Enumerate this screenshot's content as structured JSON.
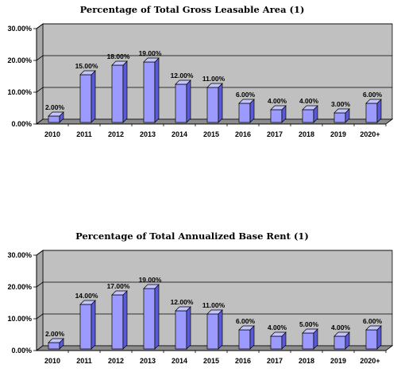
{
  "chart_data": [
    {
      "type": "bar",
      "title": "Percentage of Total Gross Leasable Area (1)",
      "categories": [
        "2010",
        "2011",
        "2012",
        "2013",
        "2014",
        "2015",
        "2016",
        "2017",
        "2018",
        "2019",
        "2020+"
      ],
      "values": [
        2,
        15,
        18,
        19,
        12,
        11,
        6,
        4,
        4,
        3,
        6
      ],
      "data_labels": [
        "2.00%",
        "15.00%",
        "18.00%",
        "19.00%",
        "12.00%",
        "11.00%",
        "6.00%",
        "4.00%",
        "4.00%",
        "3.00%",
        "6.00%"
      ],
      "ylim": [
        0,
        30
      ],
      "yticks": [
        0,
        10,
        20,
        30
      ],
      "ytick_labels": [
        "0.00%",
        "10.00%",
        "20.00%",
        "30.00%"
      ],
      "grid": true,
      "colors": {
        "bar": "#9a9aff",
        "bar_side": "#5a5ad6",
        "bar_top": "#c4c4ff",
        "plot_back": "#c0c0c0",
        "plot_floor": "#8c8c8c"
      }
    },
    {
      "type": "bar",
      "title": "Percentage of Total Annualized Base Rent (1)",
      "categories": [
        "2010",
        "2011",
        "2012",
        "2013",
        "2014",
        "2015",
        "2016",
        "2017",
        "2018",
        "2019",
        "2020+"
      ],
      "values": [
        2,
        14,
        17,
        19,
        12,
        11,
        6,
        4,
        5,
        4,
        6
      ],
      "data_labels": [
        "2.00%",
        "14.00%",
        "17.00%",
        "19.00%",
        "12.00%",
        "11.00%",
        "6.00%",
        "4.00%",
        "5.00%",
        "4.00%",
        "6.00%"
      ],
      "ylim": [
        0,
        30
      ],
      "yticks": [
        0,
        10,
        20,
        30
      ],
      "ytick_labels": [
        "0.00%",
        "10.00%",
        "20.00%",
        "30.00%"
      ],
      "grid": true,
      "colors": {
        "bar": "#9a9aff",
        "bar_side": "#5a5ad6",
        "bar_top": "#c4c4ff",
        "plot_back": "#c0c0c0",
        "plot_floor": "#8c8c8c"
      }
    }
  ]
}
